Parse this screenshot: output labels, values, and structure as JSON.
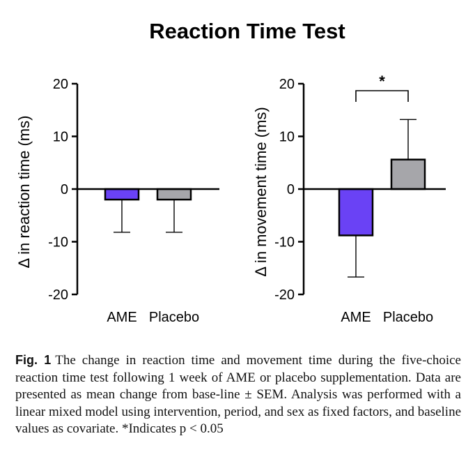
{
  "figure_title": "Reaction Time Test",
  "chart_data": [
    {
      "type": "bar",
      "title": "",
      "xlabel": "",
      "ylabel": "Δ in reaction time (ms)",
      "categories": [
        "AME",
        "Placebo"
      ],
      "values": [
        -2.0,
        -2.0
      ],
      "error": [
        6.2,
        6.2
      ],
      "colors": [
        "#6a42f5",
        "#a6a6aa"
      ],
      "ylim": [
        -20,
        20
      ],
      "yticks": [
        20,
        10,
        0,
        -10,
        -20
      ],
      "ytick_labels": [
        "20",
        "10",
        "0",
        "-10",
        "-20"
      ],
      "significance": null
    },
    {
      "type": "bar",
      "title": "",
      "xlabel": "",
      "ylabel": "Δ in movement time (ms)",
      "categories": [
        "AME",
        "Placebo"
      ],
      "values": [
        -8.8,
        5.6
      ],
      "error": [
        7.9,
        7.6
      ],
      "colors": [
        "#6a42f5",
        "#a6a6aa"
      ],
      "ylim": [
        -20,
        20
      ],
      "yticks": [
        20,
        10,
        0,
        -10,
        -20
      ],
      "ytick_labels": [
        "20",
        "10",
        "0",
        "-10",
        "-20"
      ],
      "significance": {
        "label": "*",
        "between": [
          "AME",
          "Placebo"
        ]
      }
    }
  ],
  "caption": {
    "label": "Fig. 1",
    "text": "The change in reaction time and movement time during the five-choice reaction time test following 1 week of AME or placebo supplementation. Data are presented as mean change from base-line ± SEM. Analysis was performed with a linear mixed model using intervention, period, and sex as fixed factors, and baseline values as covariate. *Indicates p < 0.05"
  }
}
